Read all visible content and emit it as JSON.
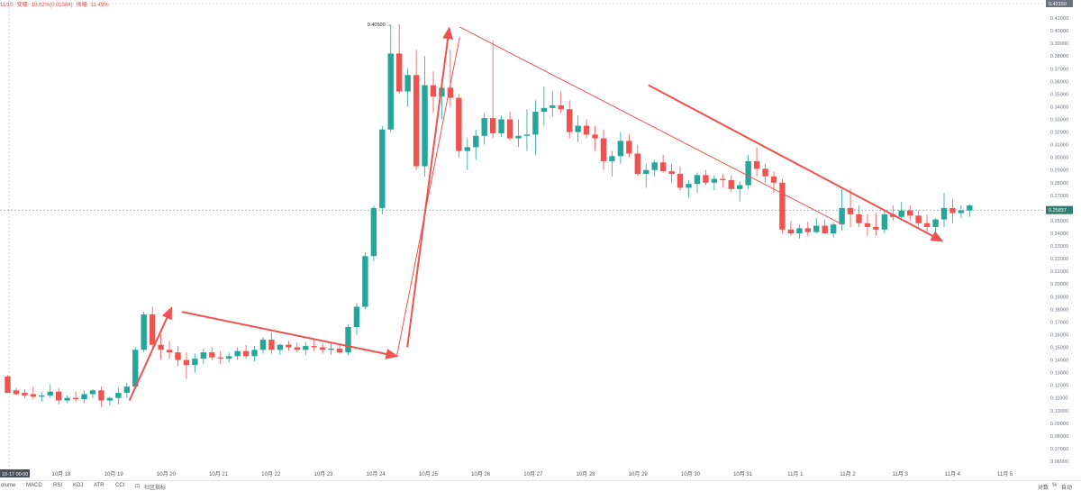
{
  "header": {
    "time": "11/10",
    "change_label": "变幅",
    "change_value": "10.02%(0.01384)",
    "amp_label": "振幅",
    "amp_value": "11.49%"
  },
  "toolbar": {
    "indicators": [
      "olume",
      "MACD",
      "RSI",
      "KDJ",
      "ATR",
      "CCI"
    ],
    "community_label": "社区指标",
    "log_label": "对数",
    "pct_label": "%",
    "auto_label": "自动"
  },
  "price_axis_side": "right",
  "colors": {
    "up": "#26a69a",
    "down": "#ef5350",
    "accent": "#ef5350",
    "last_price_bg": "#2e7d70",
    "top_label_bg": "#6b7280",
    "time_label_bg": "#4a4f5c"
  },
  "chart_data": {
    "type": "candlestick",
    "x_start_label": "10-17 00:00",
    "x_tick_labels": [
      "10月 18",
      "10月 19",
      "10月 20",
      "10月 21",
      "10月 22",
      "10月 23",
      "10月 24",
      "10月 25",
      "10月 26",
      "10月 27",
      "10月 28",
      "10月 29",
      "10月 30",
      "10月 31",
      "11月 1",
      "11月 2",
      "11月 3",
      "11月 4",
      "11月 5"
    ],
    "ylim": [
      0.06,
      0.42
    ],
    "y_ticks": [
      "0.06000",
      "0.07000",
      "0.08000",
      "0.09000",
      "0.10000",
      "0.11000",
      "0.12000",
      "0.13000",
      "0.14000",
      "0.15000",
      "0.16000",
      "0.17000",
      "0.18000",
      "0.19000",
      "0.20000",
      "0.21000",
      "0.22000",
      "0.23000",
      "0.24000",
      "0.25000",
      "0.26000",
      "0.27000",
      "0.28000",
      "0.29000",
      "0.30000",
      "0.31000",
      "0.32000",
      "0.33000",
      "0.34000",
      "0.35000",
      "0.36000",
      "0.37000",
      "0.38000",
      "0.39000",
      "0.40000",
      "0.41000"
    ],
    "top_price_label": "0.42150",
    "last_price_label": "0.25837",
    "last_price": 0.25837,
    "peak_annotation": "0.40500",
    "candles": [
      [
        0.127,
        0.128,
        0.115,
        0.114
      ],
      [
        0.116,
        0.118,
        0.112,
        0.113
      ],
      [
        0.114,
        0.117,
        0.11,
        0.112
      ],
      [
        0.113,
        0.119,
        0.109,
        0.111
      ],
      [
        0.111,
        0.115,
        0.107,
        0.112
      ],
      [
        0.112,
        0.121,
        0.11,
        0.115
      ],
      [
        0.115,
        0.118,
        0.105,
        0.108
      ],
      [
        0.108,
        0.112,
        0.106,
        0.11
      ],
      [
        0.11,
        0.115,
        0.107,
        0.109
      ],
      [
        0.109,
        0.116,
        0.106,
        0.113
      ],
      [
        0.113,
        0.117,
        0.11,
        0.116
      ],
      [
        0.116,
        0.119,
        0.103,
        0.108
      ],
      [
        0.108,
        0.111,
        0.104,
        0.11
      ],
      [
        0.11,
        0.118,
        0.105,
        0.114
      ],
      [
        0.114,
        0.122,
        0.11,
        0.119
      ],
      [
        0.119,
        0.15,
        0.117,
        0.148
      ],
      [
        0.148,
        0.178,
        0.146,
        0.176
      ],
      [
        0.176,
        0.182,
        0.15,
        0.152
      ],
      [
        0.152,
        0.16,
        0.14,
        0.148
      ],
      [
        0.148,
        0.155,
        0.141,
        0.146
      ],
      [
        0.146,
        0.151,
        0.135,
        0.14
      ],
      [
        0.14,
        0.146,
        0.125,
        0.136
      ],
      [
        0.136,
        0.145,
        0.13,
        0.141
      ],
      [
        0.141,
        0.149,
        0.137,
        0.146
      ],
      [
        0.146,
        0.15,
        0.14,
        0.142
      ],
      [
        0.142,
        0.147,
        0.137,
        0.141
      ],
      [
        0.141,
        0.146,
        0.138,
        0.143
      ],
      [
        0.143,
        0.15,
        0.14,
        0.147
      ],
      [
        0.147,
        0.152,
        0.141,
        0.143
      ],
      [
        0.143,
        0.151,
        0.139,
        0.148
      ],
      [
        0.148,
        0.158,
        0.145,
        0.156
      ],
      [
        0.156,
        0.162,
        0.145,
        0.148
      ],
      [
        0.148,
        0.153,
        0.144,
        0.152
      ],
      [
        0.152,
        0.155,
        0.147,
        0.15
      ],
      [
        0.15,
        0.154,
        0.146,
        0.148
      ],
      [
        0.148,
        0.154,
        0.144,
        0.151
      ],
      [
        0.151,
        0.156,
        0.147,
        0.15
      ],
      [
        0.15,
        0.153,
        0.145,
        0.148
      ],
      [
        0.148,
        0.153,
        0.144,
        0.149
      ],
      [
        0.149,
        0.152,
        0.145,
        0.146
      ],
      [
        0.146,
        0.168,
        0.144,
        0.166
      ],
      [
        0.166,
        0.185,
        0.16,
        0.182
      ],
      [
        0.182,
        0.225,
        0.18,
        0.222
      ],
      [
        0.222,
        0.262,
        0.218,
        0.26
      ],
      [
        0.26,
        0.325,
        0.255,
        0.322
      ],
      [
        0.322,
        0.405,
        0.32,
        0.382
      ],
      [
        0.382,
        0.405,
        0.35,
        0.352
      ],
      [
        0.352,
        0.37,
        0.34,
        0.365
      ],
      [
        0.365,
        0.385,
        0.29,
        0.293
      ],
      [
        0.293,
        0.38,
        0.285,
        0.357
      ],
      [
        0.357,
        0.368,
        0.335,
        0.348
      ],
      [
        0.348,
        0.362,
        0.33,
        0.355
      ],
      [
        0.355,
        0.385,
        0.34,
        0.347
      ],
      [
        0.347,
        0.35,
        0.3,
        0.305
      ],
      [
        0.305,
        0.315,
        0.29,
        0.308
      ],
      [
        0.308,
        0.322,
        0.298,
        0.317
      ],
      [
        0.317,
        0.335,
        0.31,
        0.331
      ],
      [
        0.331,
        0.392,
        0.315,
        0.319
      ],
      [
        0.319,
        0.333,
        0.316,
        0.33
      ],
      [
        0.33,
        0.336,
        0.313,
        0.315
      ],
      [
        0.315,
        0.33,
        0.308,
        0.317
      ],
      [
        0.317,
        0.338,
        0.305,
        0.318
      ],
      [
        0.318,
        0.345,
        0.302,
        0.336
      ],
      [
        0.336,
        0.356,
        0.325,
        0.339
      ],
      [
        0.339,
        0.352,
        0.332,
        0.341
      ],
      [
        0.341,
        0.352,
        0.335,
        0.338
      ],
      [
        0.338,
        0.345,
        0.315,
        0.32
      ],
      [
        0.32,
        0.333,
        0.312,
        0.325
      ],
      [
        0.325,
        0.33,
        0.315,
        0.318
      ],
      [
        0.318,
        0.325,
        0.305,
        0.315
      ],
      [
        0.315,
        0.322,
        0.29,
        0.297
      ],
      [
        0.297,
        0.305,
        0.285,
        0.301
      ],
      [
        0.301,
        0.32,
        0.295,
        0.313
      ],
      [
        0.313,
        0.318,
        0.3,
        0.303
      ],
      [
        0.303,
        0.31,
        0.285,
        0.287
      ],
      [
        0.287,
        0.295,
        0.276,
        0.29
      ],
      [
        0.29,
        0.298,
        0.285,
        0.296
      ],
      [
        0.296,
        0.302,
        0.288,
        0.289
      ],
      [
        0.289,
        0.295,
        0.28,
        0.287
      ],
      [
        0.287,
        0.293,
        0.274,
        0.276
      ],
      [
        0.276,
        0.282,
        0.268,
        0.279
      ],
      [
        0.279,
        0.288,
        0.272,
        0.286
      ],
      [
        0.286,
        0.29,
        0.278,
        0.28
      ],
      [
        0.28,
        0.286,
        0.274,
        0.283
      ],
      [
        0.283,
        0.287,
        0.276,
        0.282
      ],
      [
        0.282,
        0.286,
        0.273,
        0.275
      ],
      [
        0.275,
        0.281,
        0.265,
        0.278
      ],
      [
        0.278,
        0.302,
        0.275,
        0.297
      ],
      [
        0.297,
        0.308,
        0.285,
        0.291
      ],
      [
        0.291,
        0.295,
        0.28,
        0.285
      ],
      [
        0.285,
        0.289,
        0.272,
        0.28
      ],
      [
        0.28,
        0.283,
        0.24,
        0.243
      ],
      [
        0.243,
        0.25,
        0.238,
        0.24
      ],
      [
        0.24,
        0.247,
        0.236,
        0.244
      ],
      [
        0.244,
        0.249,
        0.238,
        0.241
      ],
      [
        0.241,
        0.252,
        0.24,
        0.246
      ],
      [
        0.246,
        0.251,
        0.24,
        0.24
      ],
      [
        0.24,
        0.249,
        0.237,
        0.247
      ],
      [
        0.247,
        0.275,
        0.242,
        0.26
      ],
      [
        0.26,
        0.275,
        0.245,
        0.255
      ],
      [
        0.255,
        0.262,
        0.245,
        0.248
      ],
      [
        0.248,
        0.255,
        0.238,
        0.245
      ],
      [
        0.245,
        0.256,
        0.238,
        0.243
      ],
      [
        0.243,
        0.258,
        0.24,
        0.255
      ],
      [
        0.255,
        0.262,
        0.25,
        0.253
      ],
      [
        0.253,
        0.265,
        0.25,
        0.258
      ],
      [
        0.258,
        0.262,
        0.25,
        0.254
      ],
      [
        0.254,
        0.258,
        0.244,
        0.248
      ],
      [
        0.248,
        0.255,
        0.24,
        0.245
      ],
      [
        0.245,
        0.252,
        0.238,
        0.251
      ],
      [
        0.251,
        0.272,
        0.245,
        0.26
      ],
      [
        0.26,
        0.267,
        0.248,
        0.256
      ],
      [
        0.256,
        0.262,
        0.252,
        0.258
      ],
      [
        0.258,
        0.263,
        0.253,
        0.262
      ]
    ],
    "annotations": [
      {
        "type": "arrow",
        "from": [
          19.3,
          0.108
        ],
        "to": [
          20.1,
          0.181
        ]
      },
      {
        "type": "arrow",
        "from": [
          20.3,
          0.178
        ],
        "to": [
          24.4,
          0.143
        ]
      },
      {
        "type": "line",
        "from": [
          24.4,
          0.143
        ],
        "to": [
          25.6,
          0.395
        ]
      },
      {
        "type": "arrow",
        "from": [
          24.6,
          0.15
        ],
        "to": [
          25.4,
          0.402
        ]
      },
      {
        "type": "line",
        "from": [
          25.6,
          0.403
        ],
        "to": [
          32.9,
          0.247
        ]
      },
      {
        "type": "arrow",
        "from": [
          29.2,
          0.357
        ],
        "to": [
          34.8,
          0.234
        ]
      }
    ]
  }
}
